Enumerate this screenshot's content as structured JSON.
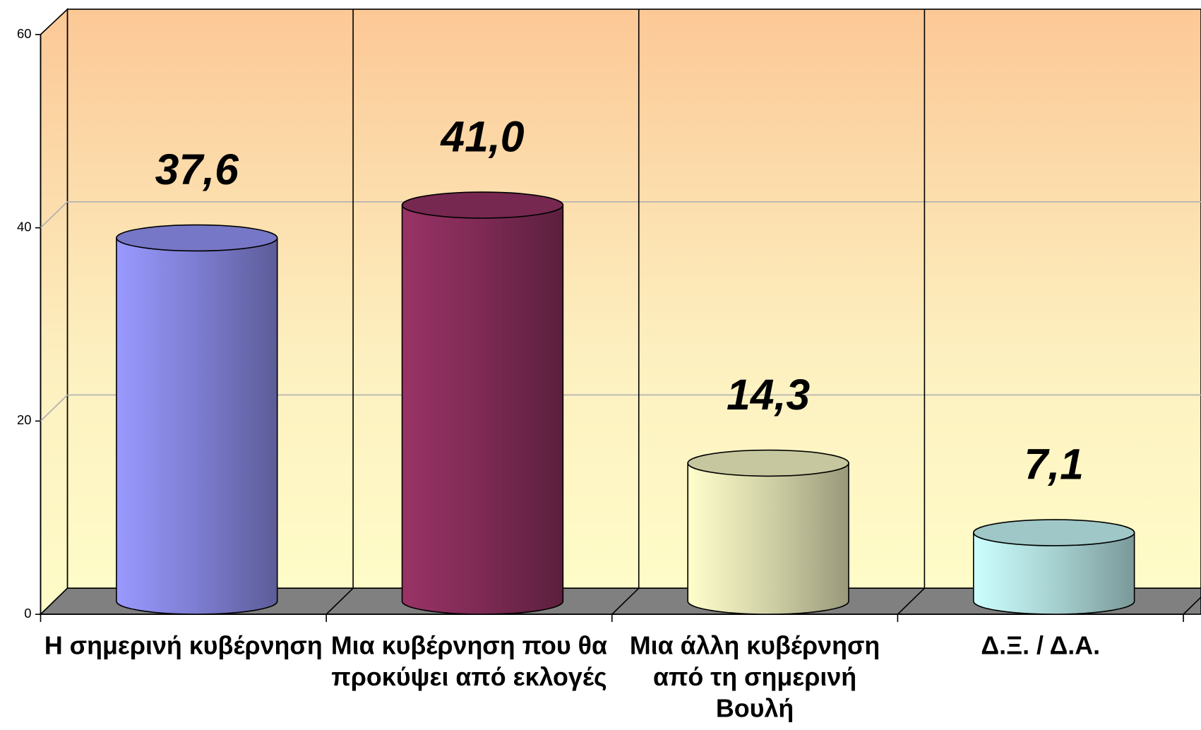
{
  "chart_data": {
    "type": "bar",
    "categories": [
      "Η σημερινή κυβέρνηση",
      "Μια κυβέρνηση που θα προκύψει από εκλογές",
      "Μια άλλη κυβέρνηση από τη σημερινή Βουλή",
      "Δ.Ξ. / Δ.Α."
    ],
    "values": [
      37.6,
      41.0,
      14.3,
      7.1
    ],
    "value_labels": [
      "37,6",
      "41,0",
      "14,3",
      "7,1"
    ],
    "colors": [
      "#9999ff",
      "#993366",
      "#ffffcc",
      "#ccffff"
    ],
    "ylim": [
      0,
      60
    ],
    "yticks": [
      0,
      20,
      40,
      60
    ],
    "grid": true
  }
}
